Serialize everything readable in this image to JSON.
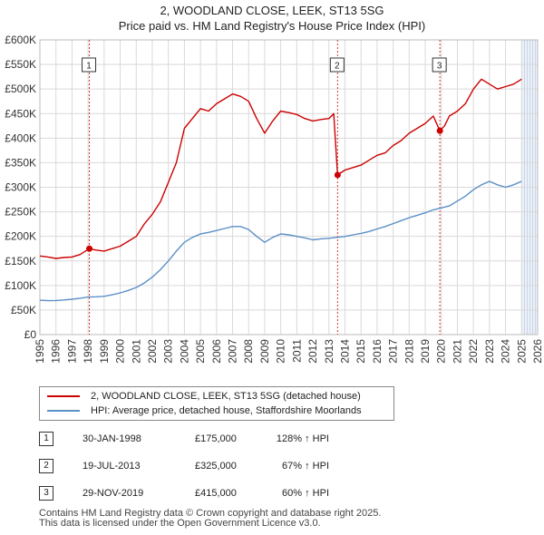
{
  "title_line1": "2, WOODLAND CLOSE, LEEK, ST13 5SG",
  "title_line2": "Price paid vs. HM Land Registry's House Price Index (HPI)",
  "chart_data": {
    "type": "line",
    "ylim": [
      0,
      600000
    ],
    "xlim": [
      1995.0,
      2026.0
    ],
    "y_ticks": [
      0,
      50000,
      100000,
      150000,
      200000,
      250000,
      300000,
      350000,
      400000,
      450000,
      500000,
      550000,
      600000
    ],
    "y_tick_labels": [
      "£0",
      "£50K",
      "£100K",
      "£150K",
      "£200K",
      "£250K",
      "£300K",
      "£350K",
      "£400K",
      "£450K",
      "£500K",
      "£550K",
      "£600K"
    ],
    "x_tick_labels": [
      "1995",
      "1996",
      "1997",
      "1998",
      "1999",
      "2000",
      "2001",
      "2002",
      "2003",
      "2004",
      "2005",
      "2006",
      "2007",
      "2008",
      "2009",
      "2010",
      "2011",
      "2012",
      "2013",
      "2014",
      "2015",
      "2016",
      "2017",
      "2018",
      "2019",
      "2020",
      "2021",
      "2022",
      "2023",
      "2024",
      "2025",
      "2026"
    ],
    "grid": true,
    "future_shade_from": 2025.0,
    "colors": {
      "property": "#cc0000",
      "hpi": "#5b8fc8",
      "sale_line": "#cc0000",
      "shade": "#dde6f3"
    },
    "series": [
      {
        "name": "2, WOODLAND CLOSE, LEEK, ST13 5SG (detached house)",
        "x": [
          1995.0,
          1995.5,
          1996.0,
          1996.5,
          1997.0,
          1997.5,
          1998.08,
          1998.5,
          1999.0,
          1999.5,
          2000.0,
          2000.5,
          2001.0,
          2001.5,
          2002.0,
          2002.5,
          2003.0,
          2003.5,
          2004.0,
          2004.5,
          2005.0,
          2005.5,
          2006.0,
          2006.5,
          2007.0,
          2007.5,
          2008.0,
          2008.5,
          2009.0,
          2009.5,
          2010.0,
          2010.5,
          2011.0,
          2011.5,
          2012.0,
          2012.5,
          2013.0,
          2013.3,
          2013.54,
          2014.0,
          2014.5,
          2015.0,
          2015.5,
          2016.0,
          2016.5,
          2017.0,
          2017.5,
          2018.0,
          2018.5,
          2019.0,
          2019.5,
          2019.91,
          2020.2,
          2020.5,
          2021.0,
          2021.5,
          2022.0,
          2022.5,
          2023.0,
          2023.5,
          2024.0,
          2024.5,
          2025.0
        ],
        "values": [
          160000,
          158000,
          155000,
          157000,
          158000,
          163000,
          175000,
          172000,
          170000,
          175000,
          180000,
          190000,
          200000,
          225000,
          245000,
          270000,
          310000,
          350000,
          420000,
          440000,
          460000,
          455000,
          470000,
          480000,
          490000,
          485000,
          475000,
          440000,
          410000,
          435000,
          455000,
          452000,
          448000,
          440000,
          435000,
          438000,
          440000,
          450000,
          325000,
          335000,
          340000,
          345000,
          355000,
          365000,
          370000,
          385000,
          395000,
          410000,
          420000,
          430000,
          445000,
          415000,
          425000,
          445000,
          455000,
          470000,
          500000,
          520000,
          510000,
          500000,
          505000,
          510000,
          520000
        ]
      },
      {
        "name": "HPI: Average price, detached house, Staffordshire Moorlands",
        "x": [
          1995.0,
          1995.5,
          1996.0,
          1996.5,
          1997.0,
          1997.5,
          1998.0,
          1998.5,
          1999.0,
          1999.5,
          2000.0,
          2000.5,
          2001.0,
          2001.5,
          2002.0,
          2002.5,
          2003.0,
          2003.5,
          2004.0,
          2004.5,
          2005.0,
          2005.5,
          2006.0,
          2006.5,
          2007.0,
          2007.5,
          2008.0,
          2008.5,
          2009.0,
          2009.5,
          2010.0,
          2010.5,
          2011.0,
          2011.5,
          2012.0,
          2012.5,
          2013.0,
          2013.5,
          2014.0,
          2014.5,
          2015.0,
          2015.5,
          2016.0,
          2016.5,
          2017.0,
          2017.5,
          2018.0,
          2018.5,
          2019.0,
          2019.5,
          2020.0,
          2020.5,
          2021.0,
          2021.5,
          2022.0,
          2022.5,
          2023.0,
          2023.5,
          2024.0,
          2024.5,
          2025.0
        ],
        "values": [
          70000,
          69000,
          69500,
          70500,
          72000,
          74000,
          76500,
          77000,
          78000,
          81000,
          85000,
          90000,
          96000,
          105000,
          117000,
          132000,
          150000,
          170000,
          188000,
          198000,
          205000,
          208000,
          212000,
          216000,
          220000,
          220000,
          214000,
          200000,
          188000,
          198000,
          205000,
          203000,
          200000,
          197000,
          193000,
          195000,
          196000,
          198000,
          200000,
          203000,
          206000,
          210000,
          215000,
          220000,
          226000,
          232000,
          238000,
          243000,
          248000,
          254000,
          258000,
          262000,
          272000,
          282000,
          295000,
          305000,
          312000,
          305000,
          300000,
          305000,
          312000
        ]
      }
    ],
    "sales": [
      {
        "num": "1",
        "x": 1998.08,
        "value": 175000
      },
      {
        "num": "2",
        "x": 2013.54,
        "value": 325000
      },
      {
        "num": "3",
        "x": 2019.91,
        "value": 415000
      }
    ]
  },
  "legend": {
    "property": "2, WOODLAND CLOSE, LEEK, ST13 5SG (detached house)",
    "hpi": "HPI: Average price, detached house, Staffordshire Moorlands"
  },
  "sales_table": [
    {
      "num": "1",
      "date": "30-JAN-1998",
      "price": "£175,000",
      "hpi": "128% ↑ HPI"
    },
    {
      "num": "2",
      "date": "19-JUL-2013",
      "price": "£325,000",
      "hpi": "67% ↑ HPI"
    },
    {
      "num": "3",
      "date": "29-NOV-2019",
      "price": "£415,000",
      "hpi": "60% ↑ HPI"
    }
  ],
  "footer_line1": "Contains HM Land Registry data © Crown copyright and database right 2025.",
  "footer_line2": "This data is licensed under the Open Government Licence v3.0."
}
